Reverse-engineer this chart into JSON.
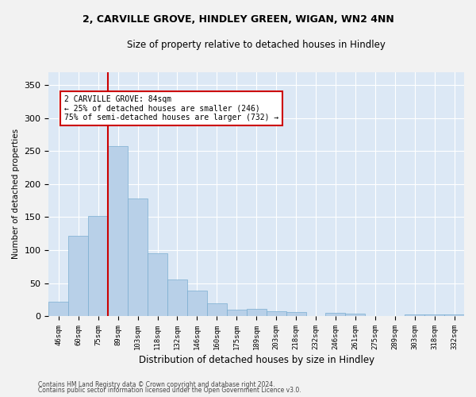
{
  "title1": "2, CARVILLE GROVE, HINDLEY GREEN, WIGAN, WN2 4NN",
  "title2": "Size of property relative to detached houses in Hindley",
  "xlabel": "Distribution of detached houses by size in Hindley",
  "ylabel": "Number of detached properties",
  "categories": [
    "46sqm",
    "60sqm",
    "75sqm",
    "89sqm",
    "103sqm",
    "118sqm",
    "132sqm",
    "146sqm",
    "160sqm",
    "175sqm",
    "189sqm",
    "203sqm",
    "218sqm",
    "232sqm",
    "246sqm",
    "261sqm",
    "275sqm",
    "289sqm",
    "303sqm",
    "318sqm",
    "332sqm"
  ],
  "values": [
    22,
    122,
    152,
    257,
    178,
    95,
    55,
    38,
    19,
    10,
    11,
    7,
    6,
    0,
    5,
    4,
    0,
    0,
    2,
    2,
    2
  ],
  "bar_color": "#b8d0e8",
  "bar_edge_color": "#7aaed0",
  "vline_color": "#cc0000",
  "annotation_text": "2 CARVILLE GROVE: 84sqm\n← 25% of detached houses are smaller (246)\n75% of semi-detached houses are larger (732) →",
  "annotation_box_color": "#ffffff",
  "annotation_box_edgecolor": "#cc0000",
  "ylim": [
    0,
    370
  ],
  "yticks": [
    0,
    50,
    100,
    150,
    200,
    250,
    300,
    350
  ],
  "background_color": "#dce8f5",
  "fig_background": "#f2f2f2",
  "footer1": "Contains HM Land Registry data © Crown copyright and database right 2024.",
  "footer2": "Contains public sector information licensed under the Open Government Licence v3.0."
}
